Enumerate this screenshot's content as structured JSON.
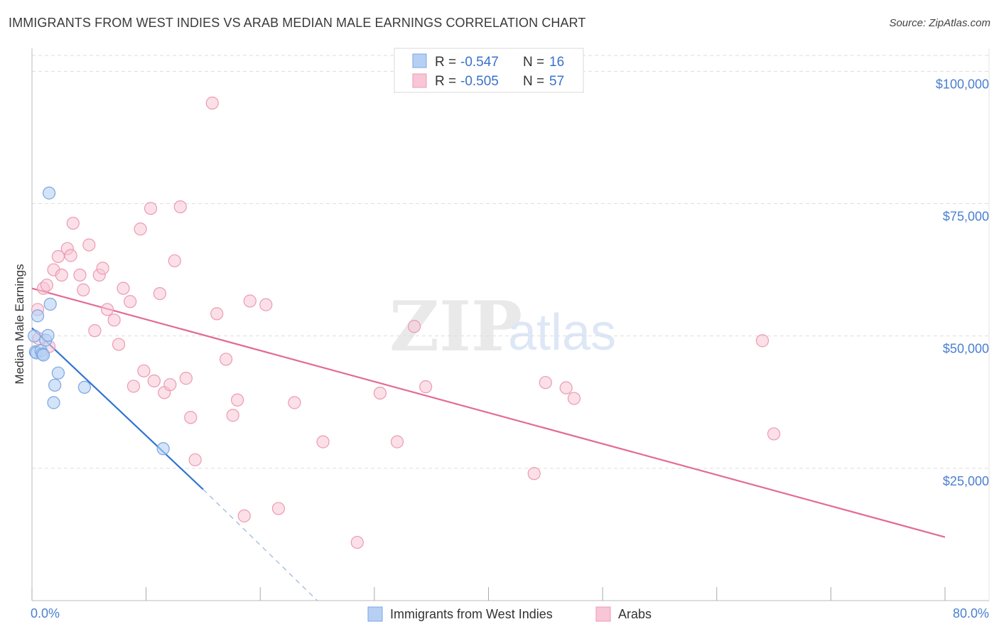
{
  "title": "IMMIGRANTS FROM WEST INDIES VS ARAB MEDIAN MALE EARNINGS CORRELATION CHART",
  "source": "Source: ZipAtlas.com",
  "watermark": {
    "zip": "ZIP",
    "atlas": "atlas"
  },
  "colors": {
    "blue_fill": "#b6d0f4",
    "blue_stroke": "#7aa6e0",
    "blue_line": "#2f74d0",
    "pink_fill": "#f8c6d6",
    "pink_stroke": "#ec9ab4",
    "pink_line": "#e26b96",
    "grid": "#dddddd",
    "axis_text": "#4a7fd0"
  },
  "legend": {
    "rows": [
      {
        "r_label": "R =",
        "r_value": "-0.547",
        "n_label": "N =",
        "n_value": "16",
        "color": "#b6d0f4"
      },
      {
        "r_label": "R =",
        "r_value": "-0.505",
        "n_label": "N =",
        "n_value": "57",
        "color": "#f8c6d6"
      }
    ]
  },
  "chart_data": {
    "type": "scatter",
    "title": "IMMIGRANTS FROM WEST INDIES VS ARAB MEDIAN MALE EARNINGS CORRELATION CHART",
    "xlabel": "",
    "ylabel": "Median Male Earnings",
    "xlim": [
      0,
      80
    ],
    "ylim": [
      0,
      103000
    ],
    "x_tick_labels": [
      "0.0%",
      "80.0%"
    ],
    "y_ticks": [
      25000,
      50000,
      75000,
      100000
    ],
    "y_tick_labels": [
      "$25,000",
      "$50,000",
      "$75,000",
      "$100,000"
    ],
    "grid": true,
    "legend_position": "top-center",
    "series": [
      {
        "name": "Immigrants from West Indies",
        "color": "#b6d0f4",
        "x": [
          0.2,
          0.3,
          0.4,
          0.5,
          0.8,
          0.9,
          1.0,
          1.2,
          1.4,
          1.5,
          1.6,
          1.9,
          2.0,
          2.3,
          4.6,
          11.5
        ],
        "y": [
          50000,
          47000,
          46800,
          53800,
          47200,
          46600,
          46400,
          49200,
          50100,
          77000,
          56000,
          37400,
          40700,
          43000,
          40300,
          28700
        ],
        "trend": {
          "x": [
            0,
            15
          ],
          "y": [
            51500,
            21000
          ]
        },
        "trend_dashed": {
          "x": [
            15,
            25
          ],
          "y": [
            21000,
            0
          ]
        }
      },
      {
        "name": "Arabs",
        "color": "#f8c6d6",
        "x": [
          0.5,
          0.6,
          1.0,
          1.3,
          1.5,
          1.9,
          2.3,
          2.6,
          3.1,
          3.4,
          3.6,
          4.2,
          4.5,
          5.0,
          5.5,
          5.9,
          6.2,
          6.6,
          7.2,
          7.6,
          8.0,
          8.6,
          8.9,
          9.5,
          9.8,
          10.4,
          10.7,
          11.2,
          11.6,
          12.1,
          12.5,
          13.0,
          13.5,
          13.9,
          14.3,
          15.8,
          16.2,
          17.0,
          17.6,
          18.0,
          18.6,
          19.1,
          20.5,
          21.6,
          23.0,
          25.5,
          28.5,
          30.5,
          32.0,
          33.5,
          34.5,
          44.0,
          45.0,
          46.8,
          47.5,
          64.0,
          65.0
        ],
        "y": [
          55000,
          49500,
          59000,
          59600,
          48000,
          62500,
          65000,
          61500,
          66500,
          65200,
          71300,
          61500,
          58700,
          67200,
          51000,
          61500,
          62800,
          55000,
          53000,
          48400,
          59000,
          56500,
          40500,
          70200,
          43400,
          74100,
          41500,
          58000,
          39300,
          40800,
          64200,
          74400,
          42000,
          34600,
          26600,
          94000,
          54200,
          45600,
          35000,
          37900,
          16000,
          56600,
          55900,
          17400,
          37400,
          30000,
          11000,
          39200,
          30000,
          51800,
          40400,
          24000,
          41200,
          40200,
          38200,
          49100,
          31500
        ],
        "trend": {
          "x": [
            0,
            80
          ],
          "y": [
            59000,
            12000
          ]
        }
      }
    ]
  },
  "bottom_legend": [
    "Immigrants from West Indies",
    "Arabs"
  ]
}
